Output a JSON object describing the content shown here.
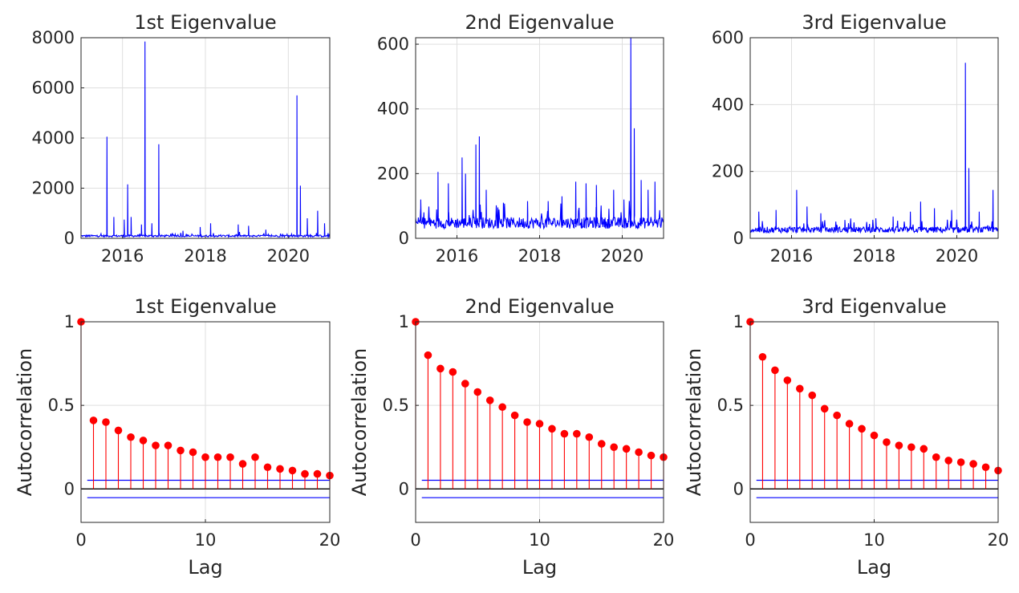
{
  "colors": {
    "series": "#0000ff",
    "stem": "#ff0000",
    "bound": "#0000ff",
    "zero": "#000000"
  },
  "chart_data": [
    {
      "type": "line",
      "title": "1st Eigenvalue",
      "xlabel": "",
      "ylabel": "",
      "x_range": [
        "2015-01",
        "2020-12"
      ],
      "xticks": [
        "2016",
        "2018",
        "2020"
      ],
      "ylim": [
        0,
        8000
      ],
      "yticks": [
        "0",
        "2000",
        "4000",
        "6000",
        "8000"
      ],
      "grid": true,
      "baseline_level": 100,
      "noise_level": 80,
      "spikes": [
        {
          "date": "2015-08",
          "value": 4050
        },
        {
          "date": "2015-10",
          "value": 850
        },
        {
          "date": "2016-01",
          "value": 750
        },
        {
          "date": "2016-02",
          "value": 2150
        },
        {
          "date": "2016-03",
          "value": 850
        },
        {
          "date": "2016-06",
          "value": 550
        },
        {
          "date": "2016-07",
          "value": 7850
        },
        {
          "date": "2016-09",
          "value": 600
        },
        {
          "date": "2016-11",
          "value": 3750
        },
        {
          "date": "2017-06",
          "value": 300
        },
        {
          "date": "2017-11",
          "value": 450
        },
        {
          "date": "2018-02",
          "value": 600
        },
        {
          "date": "2018-10",
          "value": 550
        },
        {
          "date": "2019-01",
          "value": 500
        },
        {
          "date": "2019-06",
          "value": 350
        },
        {
          "date": "2020-03",
          "value": 5700
        },
        {
          "date": "2020-04",
          "value": 2100
        },
        {
          "date": "2020-06",
          "value": 800
        },
        {
          "date": "2020-09",
          "value": 1100
        },
        {
          "date": "2020-11",
          "value": 600
        }
      ]
    },
    {
      "type": "line",
      "title": "2nd Eigenvalue",
      "xlabel": "",
      "ylabel": "",
      "x_range": [
        "2015-01",
        "2020-12"
      ],
      "xticks": [
        "2016",
        "2018",
        "2020"
      ],
      "ylim": [
        0,
        620
      ],
      "yticks": [
        "0",
        "200",
        "400",
        "600"
      ],
      "grid": true,
      "baseline_level": 55,
      "noise_level": 35,
      "spikes": [
        {
          "date": "2015-02",
          "value": 120
        },
        {
          "date": "2015-07",
          "value": 205
        },
        {
          "date": "2015-10",
          "value": 170
        },
        {
          "date": "2016-02",
          "value": 250
        },
        {
          "date": "2016-03",
          "value": 200
        },
        {
          "date": "2016-06",
          "value": 290
        },
        {
          "date": "2016-07",
          "value": 315
        },
        {
          "date": "2016-09",
          "value": 150
        },
        {
          "date": "2017-02",
          "value": 110
        },
        {
          "date": "2017-09",
          "value": 115
        },
        {
          "date": "2018-03",
          "value": 115
        },
        {
          "date": "2018-07",
          "value": 130
        },
        {
          "date": "2018-11",
          "value": 175
        },
        {
          "date": "2019-02",
          "value": 170
        },
        {
          "date": "2019-05",
          "value": 165
        },
        {
          "date": "2019-10",
          "value": 150
        },
        {
          "date": "2020-01",
          "value": 120
        },
        {
          "date": "2020-03",
          "value": 620
        },
        {
          "date": "2020-04",
          "value": 340
        },
        {
          "date": "2020-06",
          "value": 180
        },
        {
          "date": "2020-08",
          "value": 150
        },
        {
          "date": "2020-10",
          "value": 175
        }
      ]
    },
    {
      "type": "line",
      "title": "3rd Eigenvalue",
      "xlabel": "",
      "ylabel": "",
      "x_range": [
        "2015-01",
        "2020-12"
      ],
      "xticks": [
        "2016",
        "2018",
        "2020"
      ],
      "ylim": [
        0,
        600
      ],
      "yticks": [
        "0",
        "200",
        "400",
        "600"
      ],
      "grid": true,
      "baseline_level": 30,
      "noise_level": 18,
      "spikes": [
        {
          "date": "2015-03",
          "value": 80
        },
        {
          "date": "2015-08",
          "value": 85
        },
        {
          "date": "2016-02",
          "value": 145
        },
        {
          "date": "2016-05",
          "value": 95
        },
        {
          "date": "2016-09",
          "value": 75
        },
        {
          "date": "2017-04",
          "value": 55
        },
        {
          "date": "2018-01",
          "value": 60
        },
        {
          "date": "2018-06",
          "value": 65
        },
        {
          "date": "2018-11",
          "value": 80
        },
        {
          "date": "2019-02",
          "value": 110
        },
        {
          "date": "2019-06",
          "value": 90
        },
        {
          "date": "2019-11",
          "value": 85
        },
        {
          "date": "2020-03",
          "value": 525
        },
        {
          "date": "2020-04",
          "value": 210
        },
        {
          "date": "2020-07",
          "value": 80
        },
        {
          "date": "2020-11",
          "value": 145
        }
      ]
    },
    {
      "type": "stem",
      "title": "1st Eigenvalue",
      "xlabel": "Lag",
      "ylabel": "Autocorrelation",
      "xlim": [
        0,
        20
      ],
      "xticks": [
        "0",
        "10",
        "20"
      ],
      "ylim": [
        -0.2,
        1
      ],
      "yticks": [
        "0",
        "0.5",
        "1"
      ],
      "grid": true,
      "lags": [
        0,
        1,
        2,
        3,
        4,
        5,
        6,
        7,
        8,
        9,
        10,
        11,
        12,
        13,
        14,
        15,
        16,
        17,
        18,
        19,
        20
      ],
      "values": [
        1.0,
        0.41,
        0.4,
        0.35,
        0.31,
        0.29,
        0.26,
        0.26,
        0.23,
        0.22,
        0.19,
        0.19,
        0.19,
        0.15,
        0.19,
        0.13,
        0.12,
        0.11,
        0.09,
        0.09,
        0.08
      ],
      "confidence_bounds": [
        0.052,
        -0.052
      ]
    },
    {
      "type": "stem",
      "title": "2nd Eigenvalue",
      "xlabel": "Lag",
      "ylabel": "Autocorrelation",
      "xlim": [
        0,
        20
      ],
      "xticks": [
        "0",
        "10",
        "20"
      ],
      "ylim": [
        -0.2,
        1
      ],
      "yticks": [
        "0",
        "0.5",
        "1"
      ],
      "grid": true,
      "lags": [
        0,
        1,
        2,
        3,
        4,
        5,
        6,
        7,
        8,
        9,
        10,
        11,
        12,
        13,
        14,
        15,
        16,
        17,
        18,
        19,
        20
      ],
      "values": [
        1.0,
        0.8,
        0.72,
        0.7,
        0.63,
        0.58,
        0.53,
        0.49,
        0.44,
        0.4,
        0.39,
        0.36,
        0.33,
        0.33,
        0.31,
        0.27,
        0.25,
        0.24,
        0.22,
        0.2,
        0.19
      ],
      "confidence_bounds": [
        0.052,
        -0.052
      ]
    },
    {
      "type": "stem",
      "title": "3rd Eigenvalue",
      "xlabel": "Lag",
      "ylabel": "Autocorrelation",
      "xlim": [
        0,
        20
      ],
      "xticks": [
        "0",
        "10",
        "20"
      ],
      "ylim": [
        -0.2,
        1
      ],
      "yticks": [
        "0",
        "0.5",
        "1"
      ],
      "grid": true,
      "lags": [
        0,
        1,
        2,
        3,
        4,
        5,
        6,
        7,
        8,
        9,
        10,
        11,
        12,
        13,
        14,
        15,
        16,
        17,
        18,
        19,
        20
      ],
      "values": [
        1.0,
        0.79,
        0.71,
        0.65,
        0.6,
        0.56,
        0.48,
        0.44,
        0.39,
        0.36,
        0.32,
        0.28,
        0.26,
        0.25,
        0.24,
        0.19,
        0.17,
        0.16,
        0.15,
        0.13,
        0.11
      ],
      "confidence_bounds": [
        0.052,
        -0.052
      ]
    }
  ]
}
